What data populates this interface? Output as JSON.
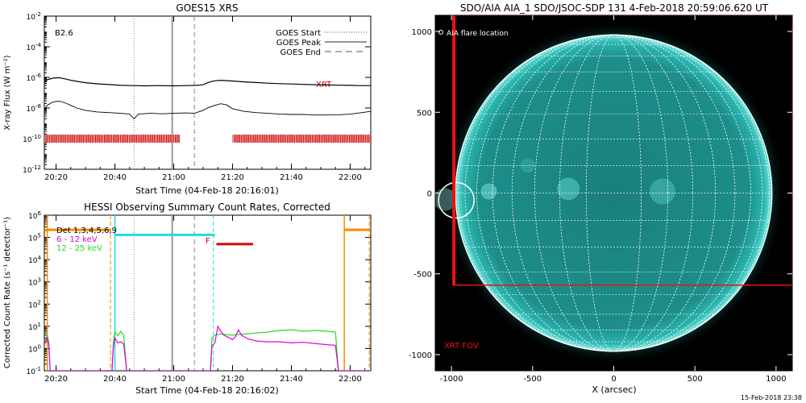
{
  "chart_data": [
    {
      "id": "goes",
      "type": "line",
      "title": "GOES15 XRS",
      "xlabel": "Start Time (04-Feb-18 20:16:01)",
      "ylabel": "X-ray Flux (W m⁻²)",
      "y_scale": "log",
      "xlim_minutes": [
        16,
        127
      ],
      "ylim": [
        1e-12,
        0.01
      ],
      "x_tick_minutes": [
        20,
        40,
        60,
        80,
        100,
        120
      ],
      "x_tick_labels": [
        "20:20",
        "20:40",
        "21:00",
        "21:20",
        "21:40",
        "22:00"
      ],
      "y_tick_exponents": [
        -12,
        -10,
        -8,
        -6,
        -4,
        -2
      ],
      "class_label": "B2.6",
      "legend_position": "top-right",
      "legend": [
        "GOES Start",
        "GOES Peak",
        "GOES End"
      ],
      "markers": {
        "goes_start": 46.5,
        "goes_peak": 59.5,
        "goes_end": 67
      },
      "xrt_label": "XRT",
      "xrt_bar_spans": [
        [
          16,
          62
        ],
        [
          80,
          127
        ]
      ],
      "xrt_bar_level": 1e-10,
      "series": [
        {
          "color": "#000000",
          "points": [
            [
              16,
              4.5e-07
            ],
            [
              17,
              7e-07
            ],
            [
              19,
              9e-07
            ],
            [
              21,
              9.5e-07
            ],
            [
              23,
              8e-07
            ],
            [
              25,
              6.5e-07
            ],
            [
              27,
              5.5e-07
            ],
            [
              30,
              4.5e-07
            ],
            [
              34,
              3.8e-07
            ],
            [
              38,
              3.4e-07
            ],
            [
              42,
              3e-07
            ],
            [
              46,
              2.9e-07
            ],
            [
              50,
              2.8e-07
            ],
            [
              55,
              2.9e-07
            ],
            [
              60,
              2.8e-07
            ],
            [
              64,
              2.9e-07
            ],
            [
              68,
              3e-07
            ],
            [
              70,
              3.3e-07
            ],
            [
              71,
              4e-07
            ],
            [
              72,
              4.8e-07
            ],
            [
              73,
              5.5e-07
            ],
            [
              74,
              6e-07
            ],
            [
              76,
              6.5e-07
            ],
            [
              80,
              5.8e-07
            ],
            [
              84,
              5.1e-07
            ],
            [
              88,
              4.6e-07
            ],
            [
              92,
              4.2e-07
            ],
            [
              96,
              3.9e-07
            ],
            [
              100,
              3.7e-07
            ],
            [
              104,
              3.5e-07
            ],
            [
              108,
              3.3e-07
            ],
            [
              112,
              3.2e-07
            ],
            [
              116,
              3.1e-07
            ],
            [
              120,
              3e-07
            ],
            [
              123,
              2.9e-07
            ],
            [
              127,
              2.9e-07
            ]
          ]
        },
        {
          "color": "#000000",
          "points": [
            [
              16,
              8e-09
            ],
            [
              17,
              1.5e-08
            ],
            [
              19,
              2.5e-08
            ],
            [
              21,
              2.8e-08
            ],
            [
              23,
              2.2e-08
            ],
            [
              25,
              1.5e-08
            ],
            [
              27,
              1e-08
            ],
            [
              30,
              7e-09
            ],
            [
              34,
              5.5e-09
            ],
            [
              38,
              5e-09
            ],
            [
              42,
              4.5e-09
            ],
            [
              45,
              4e-09
            ],
            [
              46.5,
              2e-09
            ],
            [
              48,
              4e-09
            ],
            [
              52,
              4.5e-09
            ],
            [
              56,
              4.2e-09
            ],
            [
              60,
              4.5e-09
            ],
            [
              64,
              4.8e-09
            ],
            [
              67,
              4.5e-09
            ],
            [
              70,
              7e-09
            ],
            [
              72,
              1.1e-08
            ],
            [
              74,
              1.5e-08
            ],
            [
              76,
              1.9e-08
            ],
            [
              78,
              1.6e-08
            ],
            [
              80,
              9e-09
            ],
            [
              84,
              6e-09
            ],
            [
              88,
              5e-09
            ],
            [
              92,
              4.5e-09
            ],
            [
              96,
              4e-09
            ],
            [
              100,
              3.8e-09
            ],
            [
              104,
              3.8e-09
            ],
            [
              108,
              3.5e-09
            ],
            [
              112,
              3.5e-09
            ],
            [
              116,
              3.6e-09
            ],
            [
              120,
              4e-09
            ],
            [
              124,
              5e-09
            ],
            [
              127,
              6e-09
            ]
          ]
        }
      ]
    },
    {
      "id": "hessi",
      "type": "line",
      "title": "HESSI Observing Summary Count Rates, Corrected",
      "xlabel": "Start Time (04-Feb-18 20:16:02)",
      "ylabel": "Corrected Count Rate (s⁻¹ detector⁻¹)",
      "y_scale": "log",
      "xlim_minutes": [
        16,
        127
      ],
      "ylim": [
        0.1,
        1000000.0
      ],
      "x_tick_minutes": [
        20,
        40,
        60,
        80,
        100,
        120
      ],
      "x_tick_labels": [
        "20:20",
        "20:40",
        "21:00",
        "21:20",
        "21:40",
        "22:00"
      ],
      "y_tick_exponents": [
        -1,
        0,
        1,
        2,
        3,
        4,
        5,
        6
      ],
      "legend_position": "top-left",
      "legend": [
        {
          "label": "Det 1,3,4,5,6,9",
          "color": "#000000"
        },
        {
          "label": "6 - 12 keV",
          "color": "#e000e0"
        },
        {
          "label": "12 - 25 keV",
          "color": "#22dd22"
        }
      ],
      "markers": {
        "night_end": 38.5,
        "saa_start": 73.5,
        "goes_start": 46.5,
        "goes_peak": 59.5,
        "goes_end": 67,
        "night_start_2": 118
      },
      "attenuator_label": "F",
      "attenuator_level": 50000.0,
      "attenuator_span": [
        73.5,
        87
      ],
      "orange_level": 220000.0,
      "orange_spans": [
        [
          16,
          17
        ],
        [
          17,
          38.5
        ],
        [
          118,
          127
        ]
      ],
      "cyan_level": 130000.0,
      "cyan_span": [
        40,
        74
      ],
      "series": [
        {
          "name": "6 - 12 keV",
          "color": "#e000e0",
          "points": [
            [
              16,
              1.5
            ],
            [
              17,
              3
            ],
            [
              17.5,
              1.5
            ],
            [
              18,
              0.1
            ],
            [
              39,
              0.1
            ],
            [
              39.5,
              1.2
            ],
            [
              40,
              3
            ],
            [
              41,
              1.8
            ],
            [
              42,
              2
            ],
            [
              43,
              1.6
            ],
            [
              44,
              0.1
            ],
            [
              72.5,
              0.1
            ],
            [
              73,
              1.3
            ],
            [
              74,
              1.8
            ],
            [
              75,
              10
            ],
            [
              76,
              6
            ],
            [
              77,
              4
            ],
            [
              79,
              3
            ],
            [
              80,
              2.5
            ],
            [
              81,
              3.5
            ],
            [
              82,
              7
            ],
            [
              83,
              4
            ],
            [
              85,
              2.8
            ],
            [
              88,
              2.2
            ],
            [
              92,
              2
            ],
            [
              96,
              2
            ],
            [
              100,
              1.8
            ],
            [
              104,
              1.9
            ],
            [
              108,
              1.7
            ],
            [
              112,
              1.5
            ],
            [
              115,
              1.4
            ],
            [
              116,
              0.1
            ],
            [
              127,
              0.1
            ]
          ]
        },
        {
          "name": "12 - 25 keV",
          "color": "#22dd22",
          "points": [
            [
              16,
              2
            ],
            [
              17,
              4
            ],
            [
              17.5,
              2
            ],
            [
              18,
              0.1
            ],
            [
              39,
              0.1
            ],
            [
              39.5,
              2
            ],
            [
              40,
              5.5
            ],
            [
              41,
              3.8
            ],
            [
              42,
              6
            ],
            [
              43,
              4
            ],
            [
              44,
              0.1
            ],
            [
              72.5,
              0.1
            ],
            [
              73,
              3
            ],
            [
              74,
              4
            ],
            [
              76,
              4.5
            ],
            [
              80,
              4
            ],
            [
              84,
              4.5
            ],
            [
              88,
              5
            ],
            [
              92,
              5.5
            ],
            [
              96,
              6.5
            ],
            [
              100,
              7
            ],
            [
              104,
              6
            ],
            [
              108,
              6.5
            ],
            [
              112,
              6
            ],
            [
              115,
              5.5
            ],
            [
              116,
              0.1
            ],
            [
              127,
              0.1
            ]
          ]
        }
      ]
    },
    {
      "id": "aia",
      "type": "image",
      "title": "SDO/AIA AIA_1 SDO/JSOC-SDP 131  4-Feb-2018 20:59:06.620 UT",
      "xlabel": "X (arcsec)",
      "ylabel": "",
      "xlim": [
        -1100,
        1100
      ],
      "ylim": [
        -1100,
        1100
      ],
      "x_ticks": [
        -1000,
        -500,
        0,
        500,
        1000
      ],
      "y_ticks": [
        -1000,
        -500,
        0,
        500,
        1000
      ],
      "solar_radius": 975,
      "flare_location": [
        -970,
        -45
      ],
      "flare_label": "AIA flare location",
      "xrt_fov": {
        "x": [
          -990,
          1100
        ],
        "y": [
          -570,
          1100
        ]
      },
      "xrt_fov_label": "XRT FOV",
      "disk_color": "#1f9e9a",
      "fov_color": "#ee1111"
    }
  ],
  "footer": {
    "timestamp": "15-Feb-2018 23:38"
  }
}
